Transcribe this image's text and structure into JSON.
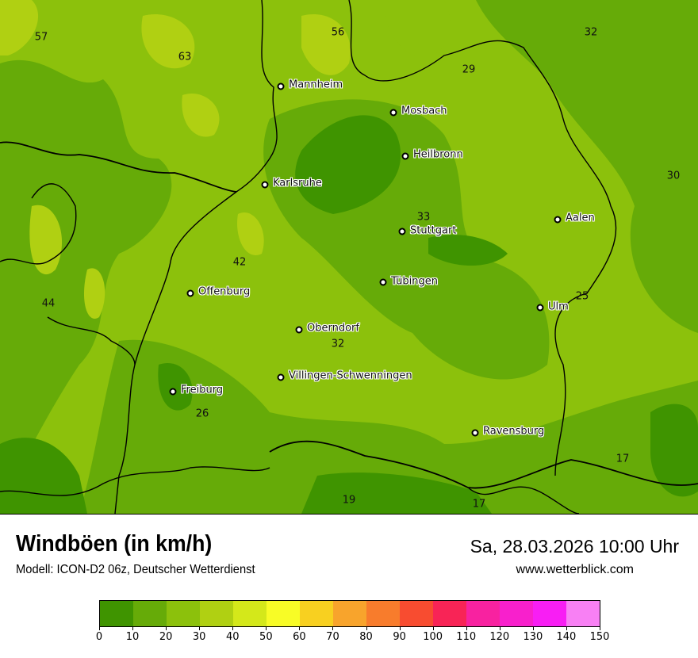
{
  "header": {
    "title": "Windböen (in km/h)",
    "subtitle": "Modell: ICON-D2 06z, Deutscher Wetterdienst",
    "datetime": "Sa, 28.03.2026 10:00 Uhr",
    "website": "www.wetterblick.com"
  },
  "legend": {
    "ticks": [
      "0",
      "10",
      "20",
      "30",
      "40",
      "50",
      "60",
      "70",
      "80",
      "90",
      "100",
      "110",
      "120",
      "130",
      "140",
      "150"
    ],
    "colors": [
      "#3f9400",
      "#66ab08",
      "#8cc10c",
      "#b0d012",
      "#d4e81a",
      "#f8fc26",
      "#f8d020",
      "#f8a42c",
      "#f87c2c",
      "#f84c30",
      "#f82456",
      "#f822a0",
      "#f820cc",
      "#f81ef4",
      "#f880f4"
    ]
  },
  "map": {
    "cities": [
      {
        "name": "Mannheim"
      },
      {
        "name": "Mosbach"
      },
      {
        "name": "Heilbronn"
      },
      {
        "name": "Karlsruhe"
      },
      {
        "name": "Aalen"
      },
      {
        "name": "Stuttgart"
      },
      {
        "name": "Tübingen"
      },
      {
        "name": "Offenburg"
      },
      {
        "name": "Ulm"
      },
      {
        "name": "Oberndorf"
      },
      {
        "name": "Villingen-Schwenningen"
      },
      {
        "name": "Freiburg"
      },
      {
        "name": "Ravensburg"
      }
    ],
    "values": [
      "57",
      "63",
      "56",
      "29",
      "32",
      "30",
      "33",
      "42",
      "44",
      "25",
      "32",
      "26",
      "17",
      "19",
      "17"
    ]
  }
}
